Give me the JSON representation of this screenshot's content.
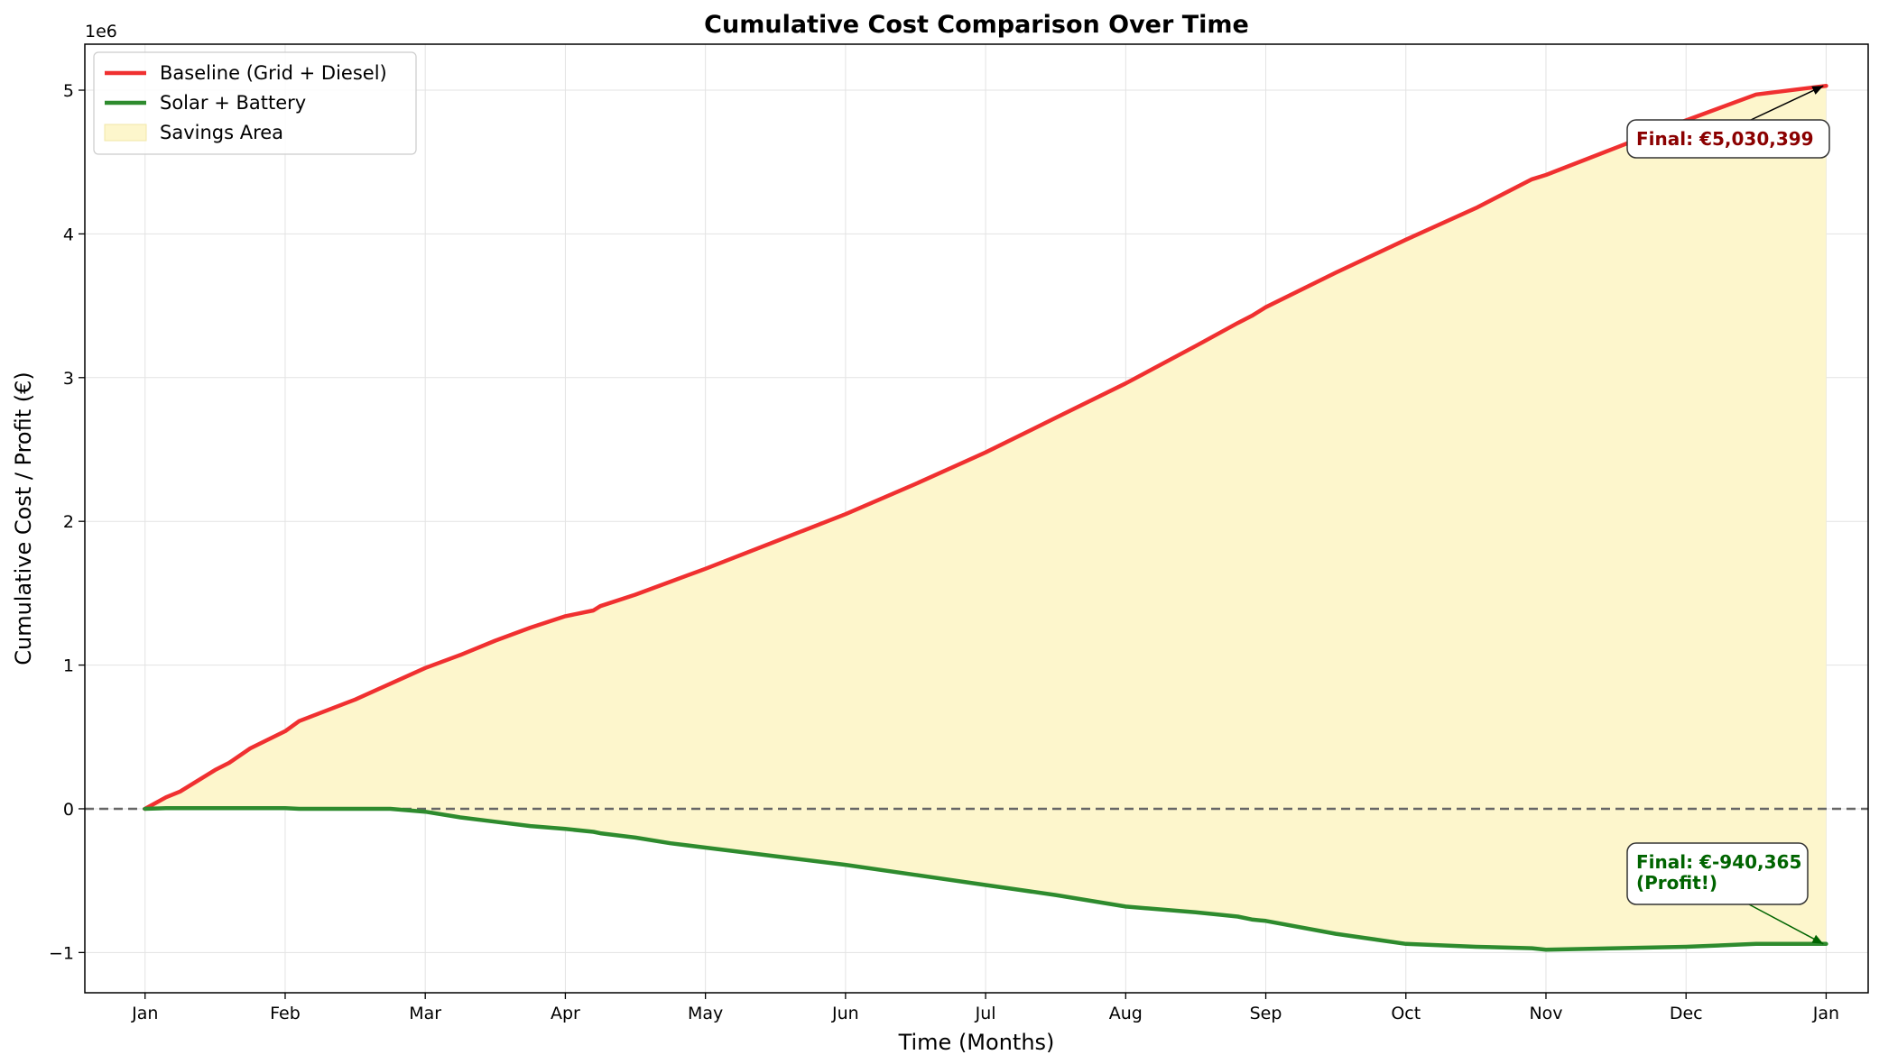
{
  "chart_data": {
    "type": "line",
    "title": "Cumulative Cost Comparison Over Time",
    "xlabel": "Time (Months)",
    "ylabel": "Cumulative Cost / Profit (€)",
    "y_offset_label": "1e6",
    "x_ticks": [
      "Jan",
      "Feb",
      "Mar",
      "Apr",
      "May",
      "Jun",
      "Jul",
      "Aug",
      "Sep",
      "Oct",
      "Nov",
      "Dec",
      "Jan"
    ],
    "x_range_months": [
      -0.43,
      12.3
    ],
    "ylim": [
      -1.28,
      5.32
    ],
    "y_ticks": [
      -1,
      0,
      1,
      2,
      3,
      4,
      5
    ],
    "y_tick_labels": [
      "−1",
      "0",
      "1",
      "2",
      "3",
      "4",
      "5"
    ],
    "grid": true,
    "legend_position": "top-left",
    "zero_line": {
      "value": 0,
      "style": "dashed",
      "color": "#666666"
    },
    "colors": {
      "baseline": "#f03030",
      "solar": "#2e8b2e",
      "savings": "#fdf6cc"
    },
    "x_months": [
      0,
      0.15,
      0.25,
      0.5,
      0.6,
      0.75,
      1.0,
      1.1,
      1.5,
      1.75,
      2.0,
      2.25,
      2.5,
      2.75,
      3.0,
      3.2,
      3.25,
      3.5,
      3.75,
      4.0,
      4.5,
      5.0,
      5.5,
      6.0,
      6.5,
      7.0,
      7.5,
      7.8,
      7.9,
      8.0,
      8.5,
      9.0,
      9.5,
      9.9,
      10.0,
      10.5,
      11.0,
      11.5,
      12.0
    ],
    "series": [
      {
        "name": "Baseline (Grid + Diesel)",
        "values": [
          0,
          0.08,
          0.12,
          0.27,
          0.32,
          0.42,
          0.54,
          0.61,
          0.76,
          0.87,
          0.98,
          1.07,
          1.17,
          1.26,
          1.34,
          1.38,
          1.41,
          1.49,
          1.58,
          1.67,
          1.86,
          2.05,
          2.26,
          2.48,
          2.72,
          2.96,
          3.22,
          3.38,
          3.43,
          3.49,
          3.73,
          3.96,
          4.18,
          4.38,
          4.41,
          4.6,
          4.79,
          4.97,
          5.03
        ]
      },
      {
        "name": "Solar + Battery",
        "values": [
          0,
          0.005,
          0.005,
          0.005,
          0.005,
          0.005,
          0.005,
          0,
          0,
          0,
          -0.02,
          -0.06,
          -0.09,
          -0.12,
          -0.14,
          -0.16,
          -0.17,
          -0.2,
          -0.24,
          -0.27,
          -0.33,
          -0.39,
          -0.46,
          -0.53,
          -0.6,
          -0.68,
          -0.72,
          -0.75,
          -0.77,
          -0.78,
          -0.87,
          -0.94,
          -0.96,
          -0.97,
          -0.98,
          -0.97,
          -0.96,
          -0.94,
          -0.94
        ]
      }
    ],
    "legend": [
      {
        "label": "Baseline (Grid + Diesel)",
        "kind": "line",
        "color": "#f03030"
      },
      {
        "label": "Solar + Battery",
        "kind": "line",
        "color": "#2e8b2e"
      },
      {
        "label": "Savings Area",
        "kind": "patch",
        "color": "#fdf6cc"
      }
    ],
    "annotations": [
      {
        "lines": [
          "Final: €5,030,399"
        ],
        "point": [
          11.98,
          5.03
        ],
        "color": "#8b0000",
        "edge": "#333333"
      },
      {
        "lines": [
          "Final: €-940,365",
          "(Profit!)"
        ],
        "point": [
          11.98,
          -0.94
        ],
        "color": "#006400",
        "edge": "#333333"
      }
    ]
  }
}
